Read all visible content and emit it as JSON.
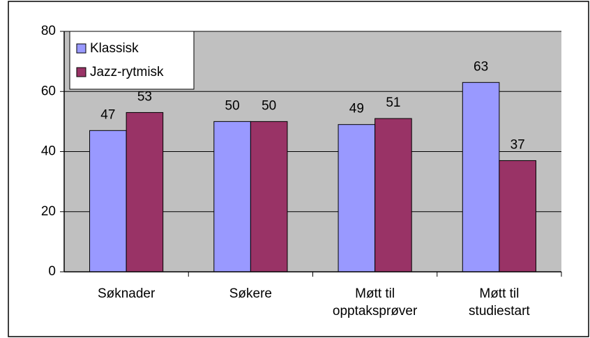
{
  "chart_data": {
    "type": "bar",
    "categories": [
      [
        "Søknader"
      ],
      [
        "Søkere"
      ],
      [
        "Møtt til",
        "opptaksprøver"
      ],
      [
        "Møtt til",
        "studiestart"
      ]
    ],
    "series": [
      {
        "name": "Klassisk",
        "color": "#9999ff",
        "values": [
          47,
          50,
          49,
          63
        ]
      },
      {
        "name": "Jazz-rytmisk",
        "color": "#993366",
        "values": [
          53,
          50,
          51,
          37
        ]
      }
    ],
    "ylim": [
      0,
      80
    ],
    "yticks": [
      0,
      20,
      40,
      60,
      80
    ],
    "grid": true,
    "legend": "top-left"
  }
}
